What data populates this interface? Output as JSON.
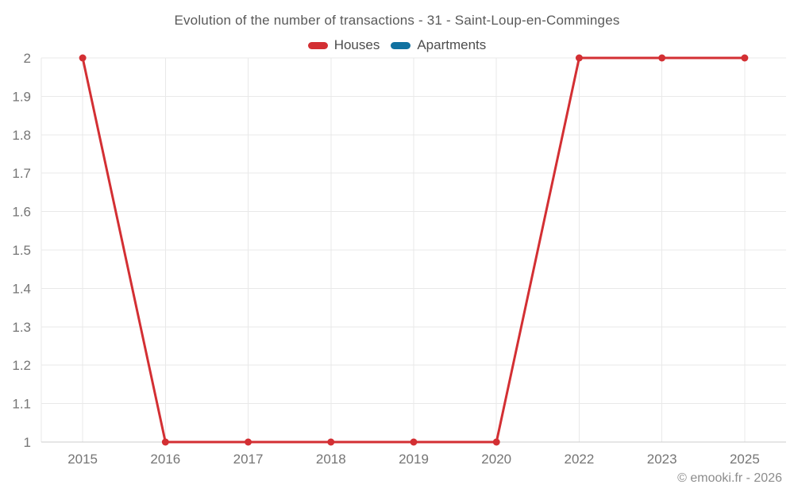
{
  "chart_data": {
    "type": "line",
    "title": "Evolution of the number of transactions - 31 - Saint-Loup-en-Comminges",
    "categories": [
      "2015",
      "2016",
      "2017",
      "2018",
      "2019",
      "2020",
      "2022",
      "2023",
      "2025"
    ],
    "series": [
      {
        "name": "Houses",
        "color": "#d32f33",
        "values": [
          2,
          1,
          1,
          1,
          1,
          1,
          2,
          2,
          2
        ]
      },
      {
        "name": "Apartments",
        "color": "#1071a0",
        "values": []
      }
    ],
    "xlabel": "",
    "ylabel": "",
    "ylim": [
      1,
      2
    ],
    "yticks": {
      "values": [
        1,
        1.1,
        1.2,
        1.3,
        1.4,
        1.5,
        1.6,
        1.7,
        1.8,
        1.9,
        2
      ],
      "labels": [
        "1",
        "1.1",
        "1.2",
        "1.3",
        "1.4",
        "1.5",
        "1.6",
        "1.7",
        "1.8",
        "1.9",
        "2"
      ]
    },
    "grid": true,
    "legend_position": "top",
    "colors": {
      "gridline": "#e9e9e9",
      "axis_line": "#cccccc",
      "tick_text": "#757575"
    }
  },
  "footer": {
    "text": "© emooki.fr - 2026"
  }
}
